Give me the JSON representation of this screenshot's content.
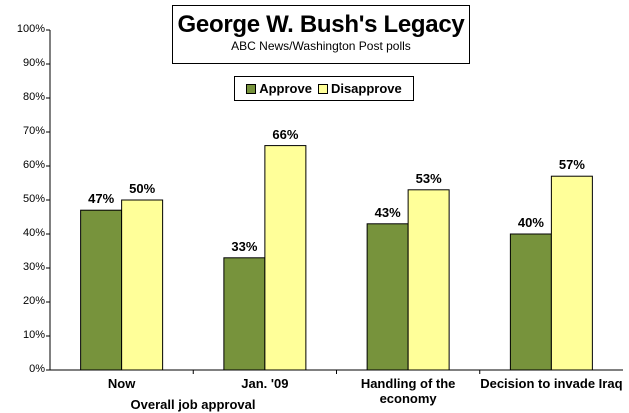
{
  "chart_data": {
    "type": "bar",
    "title": "George W. Bush's Legacy",
    "subtitle": "ABC News/Washington  Post polls",
    "categories": [
      "Now",
      "Jan. '09",
      "Handling of the economy",
      "Decision to invade Iraq"
    ],
    "category_labels": [
      [
        "Now"
      ],
      [
        "Jan. '09"
      ],
      [
        "Handling of the",
        "economy"
      ],
      [
        "Decision to invade Iraq"
      ]
    ],
    "group_label": "Overall job approval",
    "series": [
      {
        "name": "Approve",
        "values": [
          47,
          33,
          43,
          40
        ],
        "labels": [
          "47%",
          "33%",
          "43%",
          "40%"
        ],
        "color": "#77933C"
      },
      {
        "name": "Disapprove",
        "values": [
          50,
          66,
          53,
          57
        ],
        "labels": [
          "50%",
          "66%",
          "53%",
          "57%"
        ],
        "color": "#FFFF99"
      }
    ],
    "ylim": [
      0,
      100
    ],
    "yticks": [
      "0%",
      "10%",
      "20%",
      "30%",
      "40%",
      "50%",
      "60%",
      "70%",
      "80%",
      "90%",
      "100%"
    ],
    "grid": false,
    "legend_position": "top-center"
  }
}
